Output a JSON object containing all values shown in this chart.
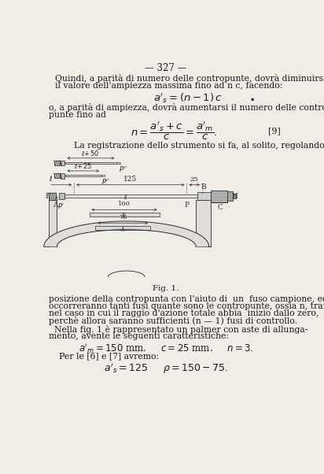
{
  "page_number": "— 327 —",
  "bg_color": "#f0ede6",
  "text_color": "#1a1a1a",
  "para1_l1": "Quindi, a parità di numero delle contropunte, dovrà diminuirsi",
  "para1_l2": "il valore dell'ampiezza massima fino ad n c, facendo:",
  "para2_l1": "o, a parità di ampiezza, dovrà aumentarsi il numero delle contro-",
  "para2_l2": "punte fino ad",
  "label9": "[9]",
  "para3": "La registrazione dello strumento si fa, al solito, regolando la",
  "fig_caption": "Fig. 1.",
  "para4_l1": "posizione della contropunta con l'aiuto di  un  fuso campione, ed",
  "para4_l2": "occorreranno tanti fusi quante sono le contropunte, ossia n, tranne",
  "para4_l3": "nel caso in cui il raggio d'azione totale abbia  inizio dallo zero,",
  "para4_l4": "perchè allora saranno sufficienti (n — 1) fusi di controllo.",
  "para5_l1": "  Nella fig. 1 è rappresentato un palmer con aste di allunga-",
  "para5_l2": "mento, avente le seguenti caratteristiche:",
  "para6": "Per le [6] e [7] avremo:"
}
